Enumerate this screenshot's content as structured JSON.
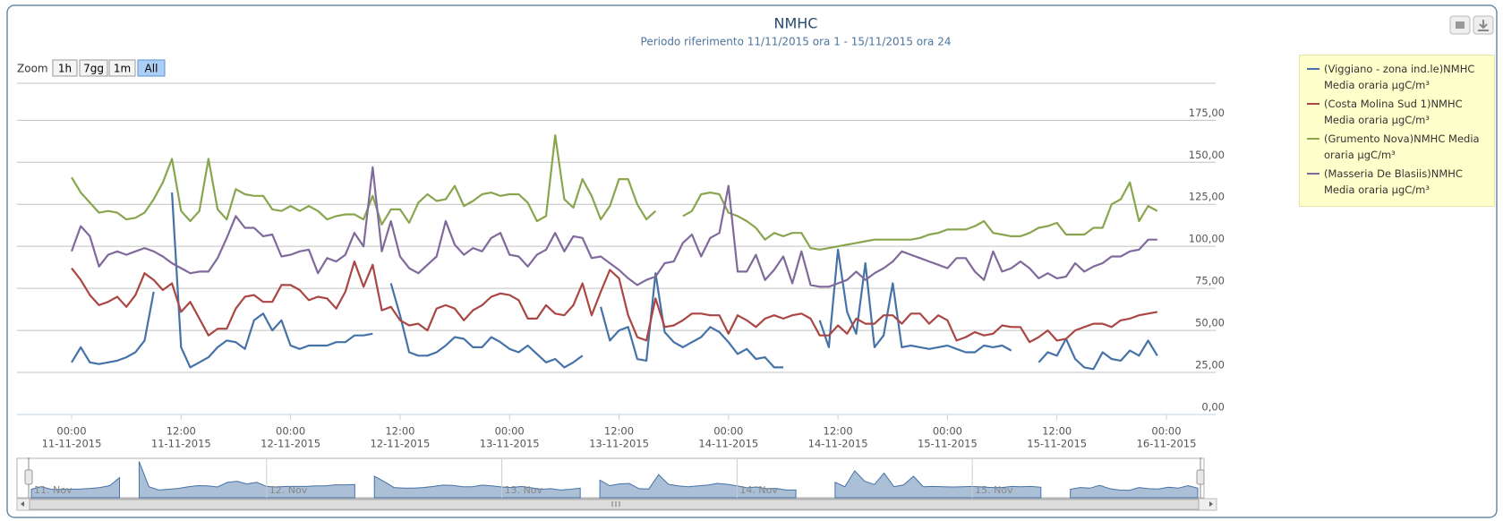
{
  "chart_data": {
    "type": "line",
    "title": "NMHC",
    "subtitle": "Periodo riferimento 11/11/2015 ora 1 - 15/11/2015 ora 24",
    "zoom": {
      "label": "Zoom",
      "buttons": [
        "1h",
        "7gg",
        "1m",
        "All"
      ],
      "selected": 3
    },
    "x": [
      0,
      1,
      2,
      3,
      4,
      5,
      6,
      7,
      8,
      9,
      10,
      11,
      12,
      13,
      14,
      15,
      16,
      17,
      18,
      19,
      20,
      21,
      22,
      23,
      24,
      25,
      26,
      27,
      28,
      29,
      30,
      31,
      32,
      33,
      34,
      35,
      36,
      37,
      38,
      39,
      40,
      41,
      42,
      43,
      44,
      45,
      46,
      47,
      48,
      49,
      50,
      51,
      52,
      53,
      54,
      55,
      56,
      57,
      58,
      59,
      60,
      61,
      62,
      63,
      64,
      65,
      66,
      67,
      68,
      69,
      70,
      71,
      72,
      73,
      74,
      75,
      76,
      77,
      78,
      79,
      80,
      81,
      82,
      83,
      84,
      85,
      86,
      87,
      88,
      89,
      90,
      91,
      92,
      93,
      94,
      95,
      96,
      97,
      98,
      99,
      100,
      101,
      102,
      103,
      104,
      105,
      106,
      107,
      108,
      109,
      110,
      111,
      112,
      113,
      114,
      115,
      116,
      117,
      118,
      119
    ],
    "xlim": [
      -6,
      125
    ],
    "xticks": [
      {
        "value": 0,
        "label": "00:00",
        "date": "11-11-2015"
      },
      {
        "value": 12,
        "label": "12:00",
        "date": "11-11-2015"
      },
      {
        "value": 24,
        "label": "00:00",
        "date": "12-11-2015"
      },
      {
        "value": 36,
        "label": "12:00",
        "date": "12-11-2015"
      },
      {
        "value": 48,
        "label": "00:00",
        "date": "13-11-2015"
      },
      {
        "value": 60,
        "label": "12:00",
        "date": "13-11-2015"
      },
      {
        "value": 72,
        "label": "00:00",
        "date": "14-11-2015"
      },
      {
        "value": 84,
        "label": "12:00",
        "date": "14-11-2015"
      },
      {
        "value": 96,
        "label": "00:00",
        "date": "15-11-2015"
      },
      {
        "value": 108,
        "label": "12:00",
        "date": "15-11-2015"
      },
      {
        "value": 120,
        "label": "00:00",
        "date": "16-11-2015"
      }
    ],
    "ylim": [
      0,
      197
    ],
    "yticks": [
      {
        "value": 0,
        "label": "0,00"
      },
      {
        "value": 25,
        "label": "25,00"
      },
      {
        "value": 50,
        "label": "50,00"
      },
      {
        "value": 75,
        "label": "75,00"
      },
      {
        "value": 100,
        "label": "100,00"
      },
      {
        "value": 125,
        "label": "125,00"
      },
      {
        "value": 150,
        "label": "150,00"
      },
      {
        "value": 175,
        "label": "175,00"
      }
    ],
    "grid": true,
    "legend": "top-right",
    "series": [
      {
        "name": "(Viggiano - zona ind.le)NMHC Media oraria µgC/m³",
        "color": "#4572a7",
        "values": [
          31,
          40,
          31,
          30,
          31,
          32,
          34,
          37,
          44,
          73,
          null,
          132,
          40,
          28,
          31,
          34,
          40,
          44,
          43,
          39,
          56,
          60,
          50,
          56,
          41,
          39,
          41,
          41,
          41,
          43,
          43,
          47,
          47,
          48,
          null,
          78,
          59,
          37,
          35,
          35,
          37,
          41,
          46,
          45,
          40,
          40,
          46,
          43,
          39,
          37,
          41,
          36,
          31,
          33,
          28,
          31,
          35,
          null,
          64,
          44,
          50,
          52,
          33,
          32,
          84,
          49,
          43,
          40,
          43,
          46,
          52,
          49,
          43,
          36,
          39,
          33,
          34,
          28,
          28,
          null,
          null,
          null,
          56,
          40,
          98,
          61,
          48,
          90,
          40,
          47,
          78,
          40,
          41,
          40,
          39,
          40,
          41,
          39,
          37,
          37,
          41,
          40,
          41,
          38,
          null,
          null,
          31,
          37,
          35,
          45,
          33,
          28,
          27,
          37,
          33,
          32,
          38,
          35,
          44,
          35
        ]
      },
      {
        "name": "(Costa Molina Sud 1)NMHC Media oraria µgC/m³",
        "color": "#aa4643",
        "values": [
          87,
          80,
          71,
          65,
          67,
          70,
          64,
          71,
          84,
          80,
          74,
          78,
          61,
          67,
          57,
          47,
          51,
          51,
          63,
          70,
          71,
          67,
          67,
          77,
          77,
          74,
          68,
          70,
          69,
          63,
          73,
          91,
          76,
          89,
          62,
          64,
          56,
          53,
          54,
          50,
          63,
          65,
          63,
          56,
          62,
          65,
          70,
          72,
          71,
          68,
          57,
          57,
          65,
          60,
          59,
          65,
          78,
          59,
          73,
          86,
          81,
          59,
          46,
          44,
          69,
          52,
          53,
          56,
          60,
          60,
          59,
          59,
          48,
          59,
          56,
          52,
          57,
          59,
          57,
          59,
          60,
          57,
          47,
          47,
          53,
          48,
          57,
          54,
          54,
          59,
          59,
          54,
          60,
          60,
          54,
          59,
          56,
          44,
          46,
          49,
          47,
          48,
          53,
          52,
          52,
          43,
          46,
          50,
          44,
          45,
          50,
          52,
          54,
          54,
          52,
          56,
          57,
          59,
          60,
          61
        ]
      },
      {
        "name": "(Grumento Nova)NMHC Media oraria µgC/m³",
        "color": "#89a54e",
        "values": [
          141,
          132,
          126,
          120,
          121,
          120,
          116,
          117,
          120,
          128,
          138,
          152,
          121,
          115,
          121,
          152,
          122,
          116,
          134,
          131,
          130,
          130,
          122,
          121,
          124,
          121,
          124,
          121,
          116,
          118,
          119,
          119,
          116,
          130,
          113,
          122,
          122,
          114,
          126,
          131,
          127,
          128,
          136,
          124,
          127,
          131,
          132,
          130,
          131,
          131,
          126,
          115,
          118,
          166,
          128,
          123,
          140,
          130,
          116,
          124,
          140,
          140,
          125,
          116,
          121,
          null,
          null,
          118,
          121,
          131,
          132,
          131,
          120,
          118,
          115,
          111,
          104,
          108,
          106,
          108,
          108,
          99,
          98,
          99,
          100,
          101,
          102,
          103,
          104,
          104,
          104,
          104,
          104,
          105,
          107,
          108,
          110,
          110,
          110,
          112,
          115,
          108,
          107,
          106,
          106,
          108,
          111,
          112,
          114,
          107,
          107,
          107,
          111,
          111,
          125,
          128,
          138,
          115,
          124,
          121
        ]
      },
      {
        "name": "(Masseria De Blasiis)NMHC Media oraria µgC/m³",
        "color": "#80699b",
        "values": [
          97,
          112,
          106,
          88,
          95,
          97,
          95,
          97,
          99,
          97,
          94,
          90,
          87,
          84,
          85,
          85,
          93,
          105,
          118,
          111,
          111,
          106,
          107,
          94,
          95,
          97,
          98,
          84,
          93,
          91,
          95,
          108,
          100,
          147,
          97,
          115,
          94,
          87,
          84,
          89,
          94,
          115,
          101,
          95,
          99,
          97,
          105,
          108,
          95,
          94,
          88,
          95,
          98,
          108,
          97,
          106,
          105,
          93,
          94,
          90,
          86,
          81,
          77,
          80,
          82,
          90,
          91,
          102,
          107,
          94,
          105,
          108,
          136,
          85,
          85,
          95,
          80,
          86,
          94,
          78,
          97,
          77,
          76,
          76,
          78,
          80,
          85,
          80,
          84,
          87,
          91,
          97,
          95,
          93,
          91,
          89,
          87,
          93,
          93,
          85,
          80,
          97,
          85,
          87,
          91,
          87,
          81,
          84,
          81,
          82,
          90,
          85,
          88,
          90,
          94,
          94,
          97,
          98,
          104,
          104
        ]
      }
    ],
    "navigator": {
      "labels": [
        "11. Nov",
        "12. Nov",
        "13. Nov",
        "14. Nov",
        "15. Nov"
      ],
      "series": 0
    }
  }
}
